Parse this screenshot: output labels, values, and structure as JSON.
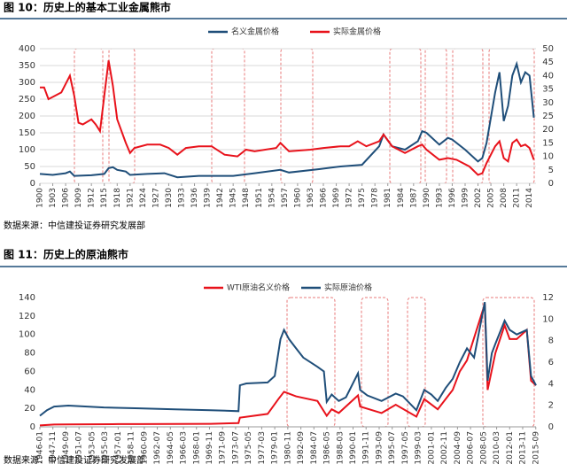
{
  "header1": "图 10：历史上的基本工业金属熊市",
  "source1": "数据来源：中信建投证券研究发展部",
  "header2": "图 11：历史上的原油熊市",
  "source2": "数据来源：中信建投证券研究发展部",
  "chart_data": [
    {
      "type": "line",
      "xlim": [
        1900,
        2015.5
      ],
      "xticks": [
        1900,
        1903,
        1906,
        1909,
        1912,
        1915,
        1918,
        1921,
        1924,
        1927,
        1930,
        1933,
        1936,
        1939,
        1942,
        1945,
        1948,
        1951,
        1954,
        1957,
        1960,
        1963,
        1966,
        1969,
        1972,
        1975,
        1978,
        1981,
        1984,
        1987,
        1990,
        1993,
        1996,
        1999,
        2002,
        2005,
        2008,
        2011,
        2014
      ],
      "ylim": [
        0,
        400
      ],
      "yticks": [
        0,
        50,
        100,
        150,
        200,
        250,
        300,
        350,
        400
      ],
      "y2lim": [
        0,
        50
      ],
      "y2ticks": [
        0,
        5,
        10,
        15,
        20,
        25,
        30,
        35,
        40,
        45,
        50
      ],
      "grid": true,
      "series": [
        {
          "name": "名义金属价格",
          "color": "#1f4e79",
          "x": [
            1900,
            1903,
            1906,
            1907,
            1908,
            1912,
            1915,
            1916,
            1917,
            1918,
            1920,
            1921,
            1925,
            1929,
            1932,
            1937,
            1940,
            1945,
            1950,
            1956,
            1958,
            1965,
            1970,
            1975,
            1979,
            1980,
            1982,
            1985,
            1988,
            1989,
            1990,
            1993,
            1995,
            1996,
            1999,
            2002,
            2003,
            2004,
            2006,
            2007,
            2008,
            2009,
            2010,
            2011,
            2012,
            2013,
            2014,
            2015
          ],
          "values": [
            28,
            25,
            30,
            35,
            22,
            24,
            28,
            45,
            48,
            40,
            35,
            25,
            28,
            30,
            18,
            22,
            22,
            22,
            30,
            40,
            32,
            42,
            50,
            55,
            110,
            145,
            110,
            100,
            125,
            155,
            150,
            115,
            135,
            130,
            100,
            65,
            75,
            120,
            270,
            330,
            185,
            230,
            320,
            355,
            300,
            330,
            320,
            195
          ]
        },
        {
          "name": "实际金属价格",
          "color": "#e8121b",
          "x": [
            1900,
            1901,
            1902,
            1905,
            1907,
            1908,
            1909,
            1910,
            1912,
            1913,
            1914,
            1915,
            1916,
            1917,
            1918,
            1920,
            1921,
            1922,
            1925,
            1928,
            1930,
            1932,
            1934,
            1937,
            1940,
            1943,
            1946,
            1948,
            1950,
            1955,
            1956,
            1958,
            1963,
            1966,
            1970,
            1972,
            1974,
            1976,
            1979,
            1980,
            1982,
            1985,
            1988,
            1989,
            1990,
            1993,
            1995,
            1997,
            2000,
            2002,
            2003,
            2004,
            2006,
            2007,
            2008,
            2009,
            2010,
            2011,
            2012,
            2013,
            2014,
            2015
          ],
          "values": [
            285,
            285,
            250,
            270,
            320,
            260,
            180,
            175,
            190,
            175,
            155,
            260,
            365,
            290,
            190,
            120,
            90,
            105,
            115,
            115,
            105,
            85,
            105,
            110,
            110,
            85,
            80,
            100,
            95,
            105,
            120,
            95,
            100,
            105,
            110,
            110,
            125,
            110,
            125,
            145,
            110,
            90,
            110,
            115,
            100,
            70,
            75,
            70,
            50,
            25,
            30,
            60,
            110,
            125,
            75,
            65,
            120,
            130,
            110,
            115,
            105,
            70
          ]
        }
      ]
    },
    {
      "type": "line",
      "xlim": [
        1946,
        2015.7
      ],
      "xticks": [
        {
          "value": 1946,
          "label": "1946-01"
        },
        {
          "value": 1947.83,
          "label": "1947-11"
        },
        {
          "value": 1949.67,
          "label": "1949-09"
        },
        {
          "value": 1951.5,
          "label": "1951-07"
        },
        {
          "value": 1953.33,
          "label": "1953-05"
        },
        {
          "value": 1955.17,
          "label": "1955-03"
        },
        {
          "value": 1957,
          "label": "1957-01"
        },
        {
          "value": 1958.83,
          "label": "1958-11"
        },
        {
          "value": 1960.67,
          "label": "1960-09"
        },
        {
          "value": 1962.5,
          "label": "1962-07"
        },
        {
          "value": 1964.33,
          "label": "1964-05"
        },
        {
          "value": 1966.17,
          "label": "1966-03"
        },
        {
          "value": 1968,
          "label": "1968-01"
        },
        {
          "value": 1969.83,
          "label": "1969-11"
        },
        {
          "value": 1971.67,
          "label": "1971-09"
        },
        {
          "value": 1973.5,
          "label": "1973-07"
        },
        {
          "value": 1975.33,
          "label": "1975-05"
        },
        {
          "value": 1977.17,
          "label": "1977-03"
        },
        {
          "value": 1979,
          "label": "1979-01"
        },
        {
          "value": 1980.83,
          "label": "1980-11"
        },
        {
          "value": 1982.67,
          "label": "1982-09"
        },
        {
          "value": 1984.5,
          "label": "1984-07"
        },
        {
          "value": 1986.33,
          "label": "1986-05"
        },
        {
          "value": 1988.17,
          "label": "1988-03"
        },
        {
          "value": 1990,
          "label": "1990-01"
        },
        {
          "value": 1991.83,
          "label": "1991-11"
        },
        {
          "value": 1993.67,
          "label": "1993-09"
        },
        {
          "value": 1995.5,
          "label": "1995-07"
        },
        {
          "value": 1997.33,
          "label": "1997-05"
        },
        {
          "value": 1999.17,
          "label": "1999-03"
        },
        {
          "value": 2001,
          "label": "2001-01"
        },
        {
          "value": 2002.83,
          "label": "2002-11"
        },
        {
          "value": 2004.67,
          "label": "2004-09"
        },
        {
          "value": 2006.5,
          "label": "2006-07"
        },
        {
          "value": 2008.33,
          "label": "2008-05"
        },
        {
          "value": 2010.17,
          "label": "2010-03"
        },
        {
          "value": 2012,
          "label": "2012-01"
        },
        {
          "value": 2013.83,
          "label": "2013-11"
        },
        {
          "value": 2015.67,
          "label": "2015-09"
        }
      ],
      "ylim": [
        0,
        140
      ],
      "yticks": [
        0,
        20,
        40,
        60,
        80,
        100,
        120,
        140
      ],
      "y2lim": [
        0,
        12
      ],
      "y2ticks": [
        0,
        2,
        4,
        6,
        8,
        10,
        12
      ],
      "grid": false,
      "series": [
        {
          "name": "WTI原油名义价格",
          "color": "#e8121b",
          "x": [
            1946,
            1948,
            1950,
            1957,
            1960,
            1970,
            1973.9,
            1974.1,
            1978,
            1979.5,
            1980.3,
            1982,
            1985,
            1986.3,
            1987,
            1988,
            1990.7,
            1991,
            1994,
            1996,
            1998.9,
            2000,
            2001.9,
            2004,
            2005,
            2006,
            2008.5,
            2008.9,
            2010,
            2011.3,
            2012,
            2013,
            2014.4,
            2015,
            2015.7
          ],
          "values": [
            1.5,
            2.5,
            2.6,
            3,
            3,
            3.3,
            4,
            10,
            14,
            30,
            38,
            33,
            28,
            12,
            19,
            15,
            34,
            22,
            15,
            24,
            11,
            30,
            19,
            40,
            60,
            72,
            133,
            40,
            80,
            110,
            95,
            95,
            105,
            50,
            45
          ]
        },
        {
          "name": "实际原油价格",
          "color": "#1f4e79",
          "x": [
            1946,
            1947,
            1948,
            1950,
            1955,
            1960,
            1965,
            1970,
            1973.9,
            1974.1,
            1975,
            1978,
            1979,
            1979.8,
            1980.3,
            1981,
            1982,
            1983,
            1985,
            1985.9,
            1986.3,
            1987,
            1988,
            1989,
            1990.7,
            1991,
            1992,
            1994,
            1996,
            1997,
            1998.9,
            2000,
            2001,
            2001.9,
            2003,
            2004,
            2005,
            2006,
            2007,
            2008.5,
            2008.9,
            2009.5,
            2010,
            2011.3,
            2012,
            2013,
            2014.4,
            2015,
            2015.7
          ],
          "values": [
            12,
            18,
            22,
            23,
            21,
            20,
            19,
            18,
            17,
            45,
            47,
            48,
            55,
            95,
            105,
            95,
            85,
            75,
            65,
            60,
            27,
            35,
            28,
            32,
            58,
            40,
            34,
            28,
            36,
            33,
            18,
            40,
            35,
            28,
            42,
            52,
            70,
            85,
            75,
            135,
            50,
            80,
            90,
            115,
            105,
            100,
            105,
            55,
            45
          ]
        }
      ]
    }
  ]
}
